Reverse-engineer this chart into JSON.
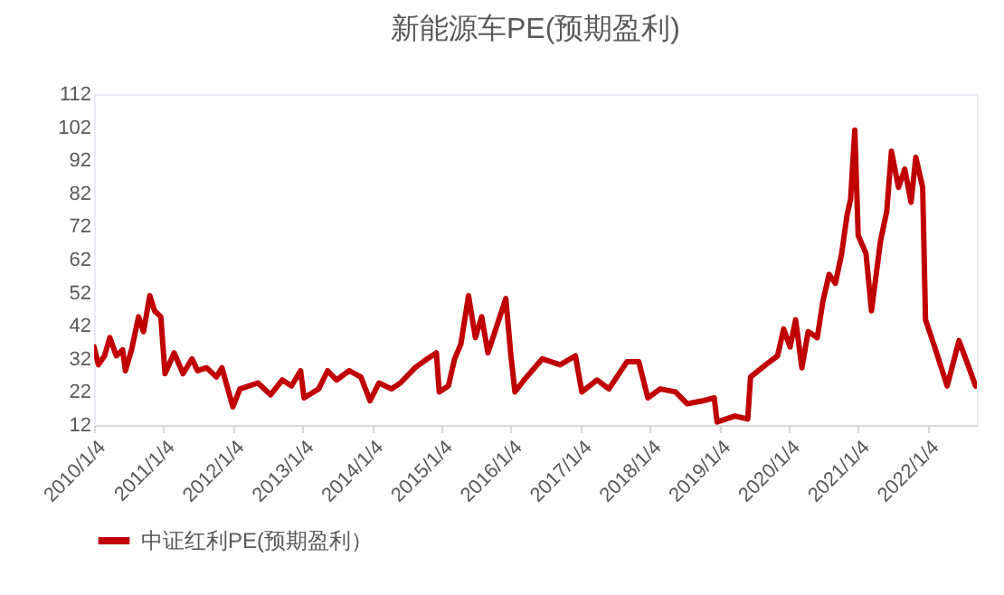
{
  "chart_data": {
    "type": "line",
    "title": "新能源车PE(预期盈利)",
    "legend": "bottom",
    "grid": false,
    "marker": "none",
    "x": [
      "2010-01-04",
      "2010-01-27",
      "2010-02-28",
      "2010-03-28",
      "2010-05-01",
      "2010-06-03",
      "2010-06-18",
      "2010-07-20",
      "2010-08-26",
      "2010-09-21",
      "2010-10-24",
      "2010-11-18",
      "2010-12-21",
      "2011-01-12",
      "2011-03-01",
      "2011-04-17",
      "2011-06-03",
      "2011-07-02",
      "2011-08-19",
      "2011-10-09",
      "2011-11-07",
      "2012-01-04",
      "2012-02-10",
      "2012-05-15",
      "2012-07-20",
      "2012-09-20",
      "2012-11-07",
      "2012-12-25",
      "2013-01-12",
      "2013-03-30",
      "2013-05-16",
      "2013-07-02",
      "2013-09-06",
      "2013-11-07",
      "2013-12-25",
      "2014-02-10",
      "2014-04-17",
      "2014-06-03",
      "2014-08-19",
      "2014-10-23",
      "2014-12-09",
      "2014-12-24",
      "2015-02-10",
      "2015-03-15",
      "2015-04-17",
      "2015-05-27",
      "2015-07-02",
      "2015-08-04",
      "2015-09-06",
      "2015-10-23",
      "2015-12-09",
      "2016-01-05",
      "2016-01-26",
      "2016-03-14",
      "2016-06-18",
      "2016-09-20",
      "2016-12-09",
      "2017-01-12",
      "2017-04-02",
      "2017-06-03",
      "2017-09-06",
      "2017-11-07",
      "2017-12-25",
      "2018-02-28",
      "2018-05-19",
      "2018-07-20",
      "2018-10-09",
      "2018-12-09",
      "2018-12-24",
      "2019-03-28",
      "2019-06-03",
      "2019-06-18",
      "2019-09-06",
      "2019-11-07",
      "2019-12-09",
      "2020-01-12",
      "2020-02-10",
      "2020-03-14",
      "2020-04-16",
      "2020-06-03",
      "2020-07-02",
      "2020-08-04",
      "2020-09-06",
      "2020-10-09",
      "2020-11-07",
      "2020-11-25",
      "2020-12-17",
      "2021-01-04",
      "2021-02-14",
      "2021-03-15",
      "2021-05-01",
      "2021-06-03",
      "2021-06-28",
      "2021-08-04",
      "2021-09-06",
      "2021-10-09",
      "2021-11-03",
      "2021-12-09",
      "2021-12-24",
      "2022-02-10",
      "2022-04-17",
      "2022-06-18",
      "2022-08-04",
      "2022-09-13"
    ],
    "series": [
      {
        "name": "中证红利PE(预期盈利）",
        "color": "#c00000",
        "values": [
          35.6,
          30.2,
          32.9,
          38.4,
          32.9,
          34.7,
          28.4,
          34.7,
          44.7,
          40.2,
          51.1,
          46.5,
          44.7,
          27.5,
          33.8,
          27.5,
          32,
          28.4,
          29.3,
          26.5,
          29.3,
          17.5,
          22.9,
          24.7,
          21.1,
          25.6,
          23.8,
          28.4,
          20.2,
          22.9,
          28.4,
          25.6,
          28.4,
          26.5,
          19.3,
          24.7,
          22.9,
          24.7,
          29.3,
          32,
          33.8,
          22,
          23.8,
          32,
          36.5,
          51.1,
          38.4,
          44.7,
          33.8,
          42,
          50.2,
          32.9,
          22,
          25.6,
          32,
          30.2,
          32.9,
          22,
          25.6,
          22.9,
          31.1,
          31.1,
          20.2,
          22.9,
          22,
          18.4,
          19.3,
          20.2,
          12.9,
          14.7,
          13.8,
          26.5,
          30.2,
          32.9,
          41,
          35.6,
          43.8,
          29.3,
          40.2,
          38.4,
          49.3,
          57.5,
          54.8,
          63.8,
          75.6,
          80.2,
          101.1,
          69.3,
          63.8,
          46.5,
          67.5,
          76.5,
          94.7,
          83.8,
          89.3,
          79.3,
          92.9,
          83.8,
          43.8,
          35.6,
          23.8,
          37.5,
          30.2,
          23.8
        ]
      }
    ],
    "xlim": [
      "2010-01-04",
      "2022-09-20"
    ],
    "xticks": [
      {
        "value": "2010-01-04",
        "label": "2010/1/4"
      },
      {
        "value": "2011-01-04",
        "label": "2011/1/4"
      },
      {
        "value": "2012-01-04",
        "label": "2012/1/4"
      },
      {
        "value": "2013-01-04",
        "label": "2013/1/4"
      },
      {
        "value": "2014-01-04",
        "label": "2014/1/4"
      },
      {
        "value": "2015-01-04",
        "label": "2015/1/4"
      },
      {
        "value": "2016-01-04",
        "label": "2016/1/4"
      },
      {
        "value": "2017-01-04",
        "label": "2017/1/4"
      },
      {
        "value": "2018-01-04",
        "label": "2018/1/4"
      },
      {
        "value": "2019-01-04",
        "label": "2019/1/4"
      },
      {
        "value": "2020-01-04",
        "label": "2020/1/4"
      },
      {
        "value": "2021-01-04",
        "label": "2021/1/4"
      },
      {
        "value": "2022-01-04",
        "label": "2022/1/4"
      }
    ],
    "ylim": [
      12,
      112
    ],
    "yticks": [
      12,
      22,
      32,
      42,
      52,
      62,
      72,
      82,
      92,
      102,
      112
    ]
  }
}
